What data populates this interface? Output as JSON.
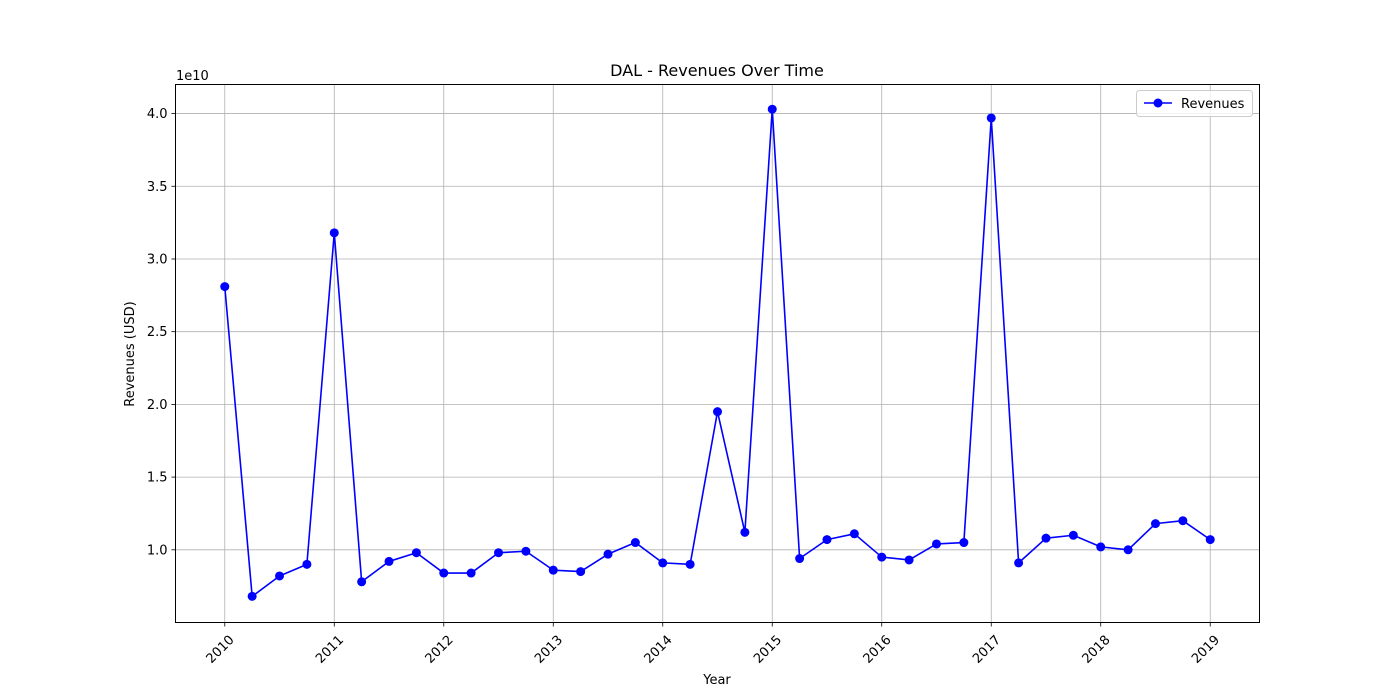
{
  "chart_data": {
    "type": "line",
    "title": "DAL - Revenues Over Time",
    "xlabel": "Year",
    "ylabel": "Revenues (USD)",
    "y_offset_label": "1e10",
    "x_tick_labels": [
      "2010",
      "2011",
      "2012",
      "2013",
      "2014",
      "2015",
      "2016",
      "2017",
      "2018",
      "2019"
    ],
    "y_tick_labels": [
      "1.0",
      "1.5",
      "2.0",
      "2.5",
      "3.0",
      "3.5",
      "4.0"
    ],
    "xlim": [
      2009.55,
      2019.45
    ],
    "ylim": [
      0.5,
      4.2
    ],
    "grid": true,
    "legend_position": "top-right",
    "series": [
      {
        "name": "Revenues",
        "color": "#0000ff",
        "marker": "circle",
        "x": [
          2010.0,
          2010.25,
          2010.5,
          2010.75,
          2011.0,
          2011.25,
          2011.5,
          2011.75,
          2012.0,
          2012.25,
          2012.5,
          2012.75,
          2013.0,
          2013.25,
          2013.5,
          2013.75,
          2014.0,
          2014.25,
          2014.5,
          2014.75,
          2015.0,
          2015.25,
          2015.5,
          2015.75,
          2016.0,
          2016.25,
          2016.5,
          2016.75,
          2017.0,
          2017.25,
          2017.5,
          2017.75,
          2018.0,
          2018.25,
          2018.5,
          2018.75,
          2019.0
        ],
        "values": [
          2.81,
          0.68,
          0.82,
          0.9,
          3.18,
          0.78,
          0.92,
          0.98,
          0.84,
          0.84,
          0.98,
          0.99,
          0.86,
          0.85,
          0.97,
          1.05,
          0.91,
          0.9,
          1.95,
          1.12,
          4.03,
          0.94,
          1.07,
          1.11,
          0.95,
          0.93,
          1.04,
          1.05,
          3.97,
          0.91,
          1.08,
          1.1,
          1.02,
          1.0,
          1.18,
          1.2,
          1.07
        ]
      }
    ]
  }
}
